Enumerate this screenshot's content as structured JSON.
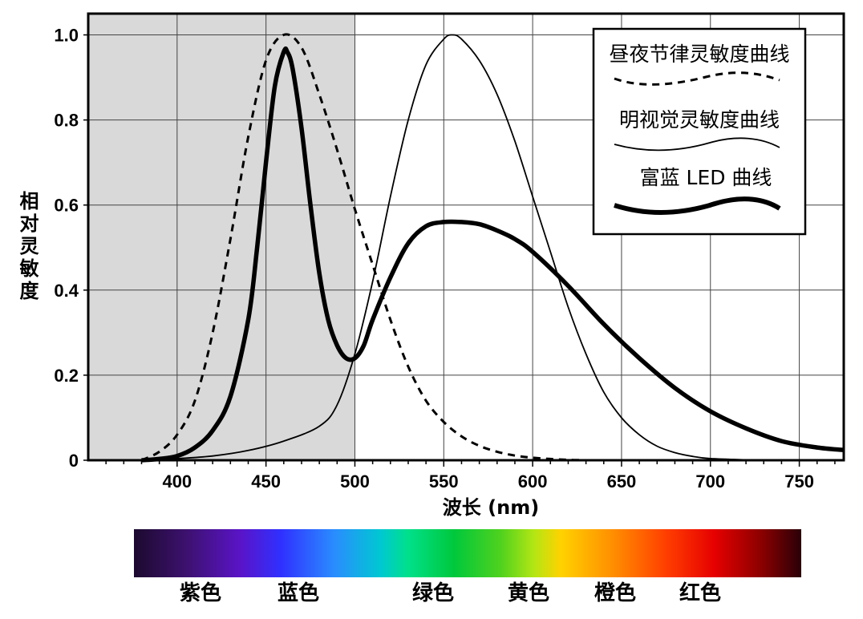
{
  "chart_data": {
    "type": "line",
    "xlabel": "波长 (nm)",
    "ylabel": "相对灵敏度",
    "xlim": [
      350,
      775
    ],
    "ylim": [
      0,
      1.05
    ],
    "x_ticks": [
      400,
      450,
      500,
      550,
      600,
      650,
      700,
      750
    ],
    "y_ticks": [
      0,
      0.2,
      0.4,
      0.6,
      0.8,
      1.0
    ],
    "y_tick_labels": [
      "0",
      "0.2",
      "0.4",
      "0.6",
      "0.8",
      "1.0"
    ],
    "grid": true,
    "shaded_region": {
      "x": [
        350,
        500
      ],
      "color": "#d9d9d9"
    },
    "legend_position": "top-right",
    "series": [
      {
        "name": "昼夜节律灵敏度曲线",
        "style": "dashed",
        "x": [
          380,
          390,
          400,
          410,
          420,
          430,
          440,
          450,
          460,
          470,
          480,
          490,
          500,
          510,
          520,
          530,
          540,
          550,
          560,
          570,
          580,
          590,
          600,
          610,
          620,
          630
        ],
        "values": [
          0.0,
          0.02,
          0.06,
          0.14,
          0.3,
          0.52,
          0.76,
          0.94,
          1.0,
          0.97,
          0.86,
          0.73,
          0.59,
          0.46,
          0.33,
          0.22,
          0.14,
          0.09,
          0.056,
          0.034,
          0.02,
          0.011,
          0.006,
          0.003,
          0.001,
          0.0
        ]
      },
      {
        "name": "明视觉灵敏度曲线",
        "style": "thin",
        "x": [
          380,
          400,
          420,
          440,
          460,
          480,
          490,
          500,
          510,
          520,
          530,
          540,
          550,
          555,
          560,
          570,
          580,
          590,
          600,
          610,
          620,
          630,
          640,
          650,
          660,
          670,
          680,
          690,
          700,
          720,
          740
        ],
        "values": [
          0.0,
          0.004,
          0.01,
          0.023,
          0.045,
          0.08,
          0.13,
          0.25,
          0.42,
          0.62,
          0.8,
          0.93,
          0.99,
          1.0,
          0.99,
          0.94,
          0.86,
          0.75,
          0.62,
          0.49,
          0.36,
          0.25,
          0.16,
          0.1,
          0.06,
          0.033,
          0.018,
          0.009,
          0.004,
          0.001,
          0.0
        ]
      },
      {
        "name": "富蓝 LED 曲线",
        "style": "thick",
        "x": [
          380,
          390,
          400,
          410,
          420,
          430,
          440,
          445,
          450,
          455,
          460,
          462,
          465,
          470,
          475,
          480,
          485,
          490,
          495,
          500,
          505,
          510,
          520,
          530,
          540,
          550,
          560,
          570,
          580,
          590,
          600,
          620,
          640,
          660,
          680,
          700,
          720,
          740,
          760,
          775
        ],
        "values": [
          0.0,
          0.003,
          0.01,
          0.03,
          0.07,
          0.15,
          0.33,
          0.5,
          0.7,
          0.88,
          0.96,
          0.96,
          0.92,
          0.78,
          0.6,
          0.44,
          0.33,
          0.27,
          0.24,
          0.24,
          0.27,
          0.33,
          0.43,
          0.51,
          0.55,
          0.56,
          0.56,
          0.555,
          0.54,
          0.52,
          0.49,
          0.41,
          0.32,
          0.24,
          0.17,
          0.115,
          0.075,
          0.045,
          0.03,
          0.024
        ]
      }
    ]
  },
  "legend": {
    "items": [
      "昼夜节律灵敏度曲线",
      "明视觉灵敏度曲线",
      "富蓝 LED 曲线"
    ]
  },
  "spectrum": {
    "labels": [
      "紫色",
      "蓝色",
      "绿色",
      "黄色",
      "橙色",
      "红色"
    ],
    "stops": [
      {
        "offset": 0.0,
        "color": "#1c0a2e"
      },
      {
        "offset": 0.08,
        "color": "#3d1170"
      },
      {
        "offset": 0.16,
        "color": "#5a14c8"
      },
      {
        "offset": 0.22,
        "color": "#3030ff"
      },
      {
        "offset": 0.3,
        "color": "#2a8cff"
      },
      {
        "offset": 0.37,
        "color": "#00c8d2"
      },
      {
        "offset": 0.41,
        "color": "#00e08c"
      },
      {
        "offset": 0.48,
        "color": "#00c83c"
      },
      {
        "offset": 0.55,
        "color": "#50d21e"
      },
      {
        "offset": 0.6,
        "color": "#b4e614"
      },
      {
        "offset": 0.64,
        "color": "#ffd200"
      },
      {
        "offset": 0.72,
        "color": "#ff8c00"
      },
      {
        "offset": 0.8,
        "color": "#ff3c00"
      },
      {
        "offset": 0.87,
        "color": "#e60000"
      },
      {
        "offset": 0.94,
        "color": "#8c0000"
      },
      {
        "offset": 1.0,
        "color": "#2a0008"
      }
    ]
  }
}
